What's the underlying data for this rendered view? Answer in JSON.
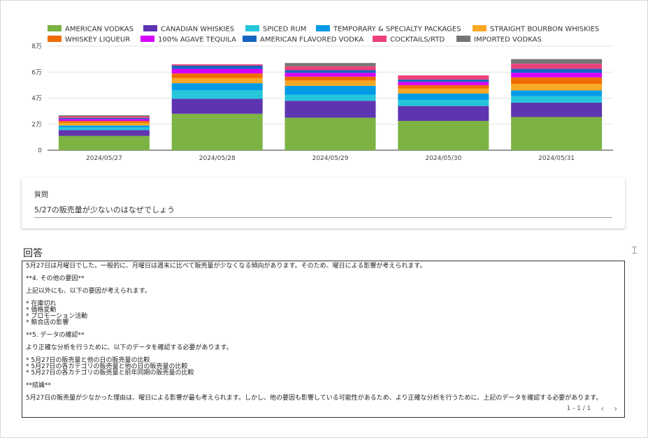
{
  "chart_data": {
    "type": "bar",
    "stacked": true,
    "categories": [
      "2024/05/27",
      "2024/05/28",
      "2024/05/29",
      "2024/05/30",
      "2024/05/31"
    ],
    "y_ticks": [
      {
        "value": 0,
        "label": "0"
      },
      {
        "value": 20000,
        "label": "2万"
      },
      {
        "value": 40000,
        "label": "4万"
      },
      {
        "value": 60000,
        "label": "6万"
      },
      {
        "value": 80000,
        "label": "8万"
      }
    ],
    "ylim": [
      0,
      80000
    ],
    "grid": true,
    "legend_position": "top",
    "series": [
      {
        "name": "AMERICAN VODKAS",
        "color": "#7cb342",
        "values": [
          11000,
          28000,
          25000,
          22500,
          25500
        ]
      },
      {
        "name": "CANADIAN WHISKIES",
        "color": "#5e35b1",
        "values": [
          4500,
          11500,
          13000,
          11500,
          11000
        ]
      },
      {
        "name": "SPICED RUM",
        "color": "#26c6da",
        "values": [
          2000,
          6500,
          4500,
          4500,
          5000
        ]
      },
      {
        "name": "TEMPORARY & SPECIALTY PACKAGES",
        "color": "#039be5",
        "values": [
          1500,
          5500,
          7000,
          5000,
          4500
        ]
      },
      {
        "name": "STRAIGHT BOURBON WHISKIES",
        "color": "#f9a825",
        "values": [
          2000,
          4000,
          4000,
          4000,
          5000
        ]
      },
      {
        "name": "WHISKEY LIQUEUR",
        "color": "#ef6c00",
        "values": [
          1500,
          3500,
          3000,
          2500,
          5000
        ]
      },
      {
        "name": "100% AGAVE TEQUILA",
        "color": "#d500f9",
        "values": [
          1500,
          3500,
          3000,
          2500,
          3500
        ]
      },
      {
        "name": "AMERICAN FLAVORED VODKA",
        "color": "#1565c0",
        "values": [
          800,
          2500,
          2000,
          1800,
          3000
        ]
      },
      {
        "name": "COCKTAILS/RTD",
        "color": "#ec407a",
        "values": [
          1200,
          1000,
          3000,
          3200,
          4000
        ]
      },
      {
        "name": "IMPORTED VODKAS",
        "color": "#757575",
        "values": [
          800,
          0,
          2500,
          0,
          3500
        ]
      }
    ]
  },
  "question": {
    "label": "質問",
    "text": "5/27の販売量が少ないのはなぜでしょう"
  },
  "answer": {
    "title": "回答",
    "lines": [
      "5月27日は月曜日でした。一般的に、月曜日は週末に比べて販売量が少なくなる傾向があります。そのため、曜日による影響が考えられます。",
      "",
      "**4. その他の要因**",
      "",
      "上記以外にも、以下の要因が考えられます。",
      "",
      "* 在庫切れ",
      "* 価格変動",
      "* プロモーション活動",
      "* 競合店の影響",
      "",
      "**5. データの確認**",
      "",
      "より正確な分析を行うために、以下のデータを確認する必要があります。",
      "",
      "* 5月27日の販売量と他の日の販売量の比較",
      "* 5月27日の各カテゴリの販売量と他の日の販売量の比較",
      "* 5月27日の各カテゴリの販売量と前年同期の販売量の比較",
      "",
      "**結論**",
      "",
      "5月27日の販売量が少なかった理由は、曜日による影響が最も考えられます。しかし、他の要因も影響している可能性があるため、より正確な分析を行うために、上記のデータを確認する必要があります。"
    ],
    "pager": "1 - 1 / 1",
    "prev_icon": "‹",
    "next_icon": "›"
  }
}
